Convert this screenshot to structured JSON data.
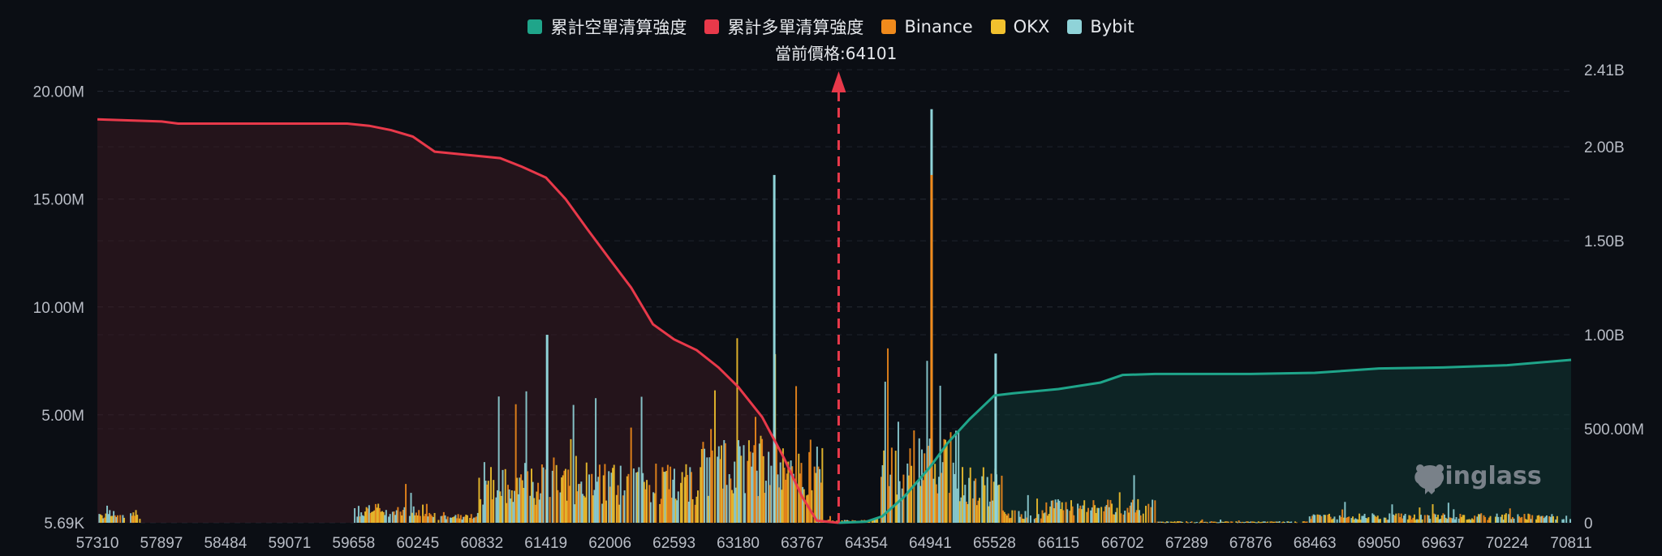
{
  "legend": {
    "items": [
      {
        "label": "累計空單清算強度",
        "color": "#1fa58a"
      },
      {
        "label": "累計多單清算強度",
        "color": "#e8394a"
      },
      {
        "label": "Binance",
        "color": "#f08a1c"
      },
      {
        "label": "OKX",
        "color": "#f2c12e"
      },
      {
        "label": "Bybit",
        "color": "#8fd3d8"
      }
    ]
  },
  "current_price_label": "當前價格:64101",
  "watermark": "coinglass",
  "chart_data": {
    "type": "bar",
    "x_tick_labels": [
      "57310",
      "57897",
      "58484",
      "59071",
      "59658",
      "60245",
      "60832",
      "61419",
      "62006",
      "62593",
      "63180",
      "63767",
      "64354",
      "64941",
      "65528",
      "66115",
      "66702",
      "67289",
      "67876",
      "68463",
      "69050",
      "69637",
      "70224",
      "70811"
    ],
    "x_range": [
      57310,
      70811
    ],
    "current_price": 64101,
    "left_axis": {
      "tick_labels": [
        "5.69K",
        "5.00M",
        "10.00M",
        "15.00M",
        "20.00M"
      ],
      "range": [
        0,
        21000000
      ]
    },
    "right_axis": {
      "tick_labels": [
        "0",
        "500.00M",
        "1.00B",
        "1.50B",
        "2.00B",
        "2.41B"
      ],
      "range": [
        0,
        2410000000
      ]
    },
    "cumulative_long": {
      "name": "累計多單清算強度",
      "color": "#e8394a",
      "points": [
        [
          57310,
          18.7
        ],
        [
          57900,
          18.6
        ],
        [
          58050,
          18.5
        ],
        [
          59000,
          18.5
        ],
        [
          59600,
          18.5
        ],
        [
          59800,
          18.4
        ],
        [
          60000,
          18.2
        ],
        [
          60200,
          17.9
        ],
        [
          60400,
          17.2
        ],
        [
          60700,
          17.05
        ],
        [
          61000,
          16.9
        ],
        [
          61200,
          16.5
        ],
        [
          61419,
          16.0
        ],
        [
          61600,
          15.0
        ],
        [
          61800,
          13.6
        ],
        [
          62006,
          12.2
        ],
        [
          62200,
          10.9
        ],
        [
          62400,
          9.2
        ],
        [
          62593,
          8.5
        ],
        [
          62800,
          8.0
        ],
        [
          63000,
          7.2
        ],
        [
          63180,
          6.3
        ],
        [
          63400,
          4.9
        ],
        [
          63600,
          3.0
        ],
        [
          63767,
          1.2
        ],
        [
          63900,
          0.1
        ],
        [
          64101,
          0.0
        ]
      ]
    },
    "cumulative_short": {
      "name": "累計空單清算強度",
      "color": "#1fa58a",
      "points": [
        [
          64101,
          0.0
        ],
        [
          64354,
          0.05
        ],
        [
          64500,
          0.3
        ],
        [
          64700,
          1.2
        ],
        [
          64941,
          2.6
        ],
        [
          65100,
          3.7
        ],
        [
          65300,
          4.8
        ],
        [
          65528,
          5.9
        ],
        [
          65700,
          6.0
        ],
        [
          66115,
          6.2
        ],
        [
          66500,
          6.5
        ],
        [
          66702,
          6.85
        ],
        [
          67000,
          6.9
        ],
        [
          67289,
          6.9
        ],
        [
          67876,
          6.9
        ],
        [
          68463,
          6.95
        ],
        [
          69050,
          7.15
        ],
        [
          69637,
          7.2
        ],
        [
          70224,
          7.3
        ],
        [
          70811,
          7.55
        ]
      ]
    },
    "bar_peaks_billion": [
      {
        "exchange": "Bybit",
        "price": 61419,
        "value": 1.0
      },
      {
        "exchange": "Bybit",
        "price": 63500,
        "value": 1.85
      },
      {
        "exchange": "Bybit",
        "price": 64941,
        "value": 2.2
      },
      {
        "exchange": "Binance",
        "price": 64941,
        "value": 1.85
      },
      {
        "exchange": "Bybit",
        "price": 65528,
        "value": 0.9
      }
    ]
  }
}
